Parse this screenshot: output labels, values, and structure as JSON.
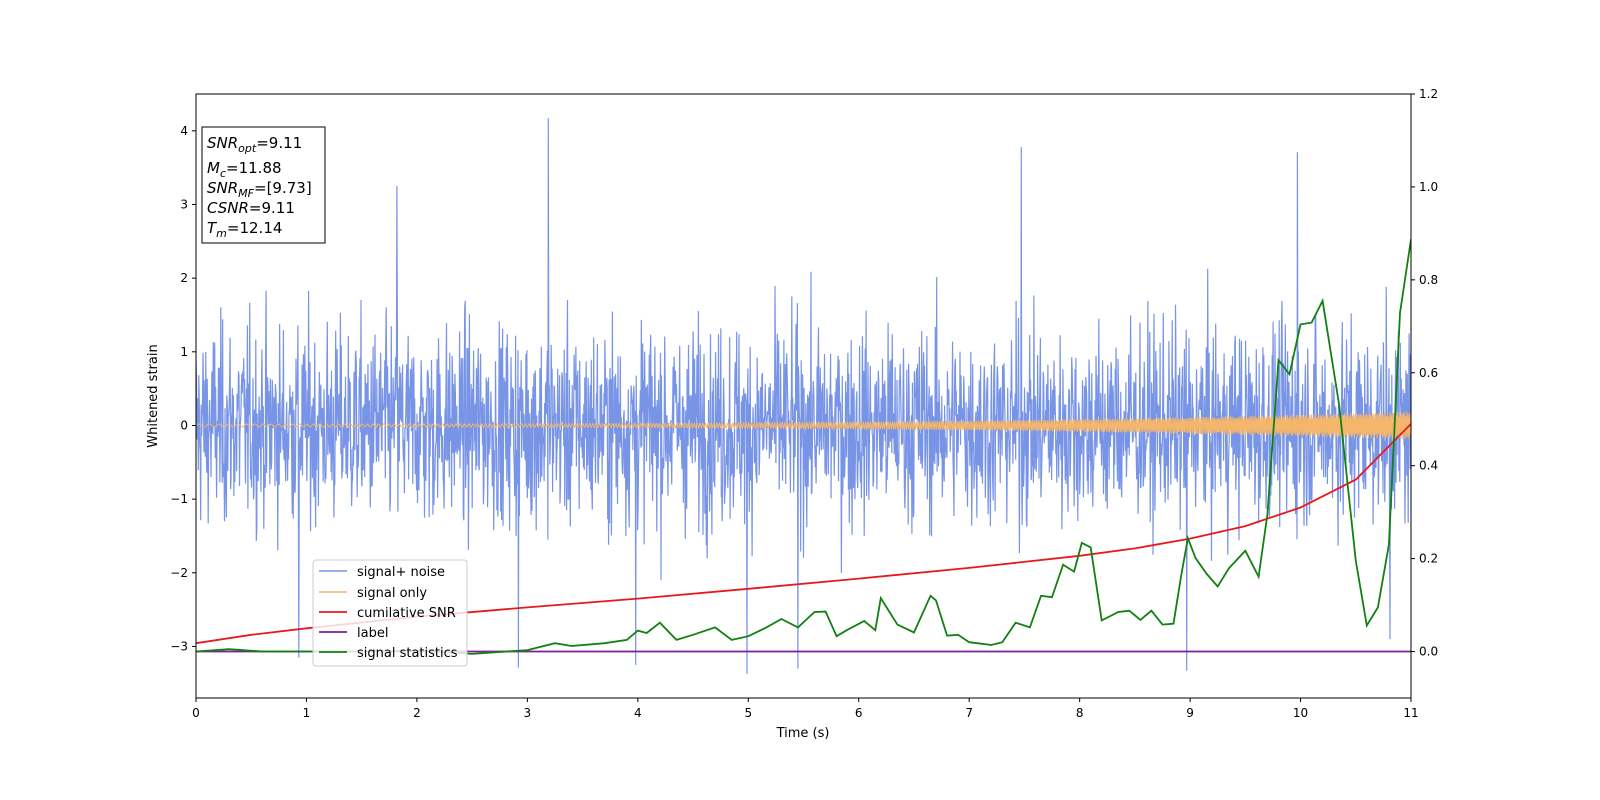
{
  "chart_data": {
    "type": "line",
    "title": "",
    "xlabel": "Time (s)",
    "ylabel": "Whitened strain",
    "xlim": [
      0,
      11
    ],
    "ylim": [
      -3.7,
      4.5
    ],
    "y2lim": [
      -0.1,
      1.2
    ],
    "x_ticks": [
      0,
      1,
      2,
      3,
      4,
      5,
      6,
      7,
      8,
      9,
      10,
      11
    ],
    "y_ticks": [
      -3,
      -2,
      -1,
      0,
      1,
      2,
      3,
      4
    ],
    "y_tick_labels": [
      "−3",
      "−2",
      "−1",
      "0",
      "1",
      "2",
      "3",
      "4"
    ],
    "y2_ticks": [
      0.0,
      0.2,
      0.4,
      0.6,
      0.8,
      1.0,
      1.2
    ],
    "y2_tick_labels": [
      "0.0",
      "0.2",
      "0.4",
      "0.6",
      "0.8",
      "1.0",
      "1.2"
    ],
    "legend_position": "lower-left",
    "info_box": {
      "snr_opt_label": "SNR",
      "snr_opt_sub": "opt",
      "snr_opt_value": "=9.11",
      "mc_label": "M",
      "mc_sub": "c",
      "mc_value": "=11.88",
      "snr_mf_label": "SNR",
      "snr_mf_sub": "MF",
      "snr_mf_value": "=[9.73]",
      "csnr_label": "CSNR",
      "csnr_value": "=9.11",
      "tm_label": "T",
      "tm_sub": "m",
      "tm_value": "=12.14"
    },
    "series": [
      {
        "name": "signal+ noise",
        "axis": "left",
        "color": "#7894e6",
        "description": "dense whitened noise, approximately uniform amplitude",
        "noise_envelope_y": [
          -2.9,
          2.6
        ],
        "peaks": [
          {
            "x": 3.19,
            "y": 4.17
          },
          {
            "x": 7.47,
            "y": 3.78
          },
          {
            "x": 9.97,
            "y": 3.71
          },
          {
            "x": 1.82,
            "y": 3.25
          },
          {
            "x": 4.99,
            "y": -3.37
          },
          {
            "x": 8.97,
            "y": -3.33
          },
          {
            "x": 2.92,
            "y": -3.29
          },
          {
            "x": 5.45,
            "y": -3.3
          },
          {
            "x": 0.93,
            "y": -3.15
          },
          {
            "x": 3.98,
            "y": -3.25
          },
          {
            "x": 10.81,
            "y": -2.9
          }
        ]
      },
      {
        "name": "signal only",
        "axis": "left",
        "color": "#f5b66b",
        "description": "chirp oscillating about 0 with amplitude growing from ~0.02 to ~0.2"
      },
      {
        "name": "cumilative SNR",
        "axis": "right",
        "color": "#e8191c",
        "x": [
          0,
          0.5,
          1,
          2,
          3,
          4,
          5,
          6,
          7,
          8,
          8.5,
          9,
          9.5,
          10,
          10.5,
          11
        ],
        "y": [
          0.018,
          0.036,
          0.05,
          0.075,
          0.095,
          0.114,
          0.135,
          0.157,
          0.18,
          0.206,
          0.222,
          0.243,
          0.27,
          0.31,
          0.37,
          0.49
        ]
      },
      {
        "name": "label",
        "axis": "right",
        "color": "#7e1e9c",
        "x": [
          0,
          11
        ],
        "y": [
          0.0,
          0.0
        ]
      },
      {
        "name": "signal statistics",
        "axis": "right",
        "color": "#128012",
        "x": [
          0.0,
          0.3,
          0.6,
          1.0,
          1.5,
          2.0,
          2.5,
          3.0,
          3.25,
          3.4,
          3.7,
          3.9,
          4.0,
          4.08,
          4.2,
          4.35,
          4.5,
          4.7,
          4.85,
          5.0,
          5.15,
          5.3,
          5.45,
          5.6,
          5.7,
          5.8,
          5.9,
          6.05,
          6.15,
          6.2,
          6.35,
          6.5,
          6.65,
          6.7,
          6.8,
          6.9,
          7.0,
          7.2,
          7.3,
          7.42,
          7.55,
          7.65,
          7.75,
          7.85,
          7.95,
          8.02,
          8.1,
          8.2,
          8.35,
          8.45,
          8.55,
          8.65,
          8.75,
          8.85,
          8.92,
          8.98,
          9.05,
          9.15,
          9.25,
          9.35,
          9.5,
          9.62,
          9.7,
          9.8,
          9.9,
          10.0,
          10.1,
          10.2,
          10.35,
          10.5,
          10.6,
          10.7,
          10.8,
          10.9,
          11.0
        ],
        "y": [
          0.0,
          0.005,
          0.0,
          0.0,
          0.0,
          0.002,
          -0.005,
          0.003,
          0.018,
          0.012,
          0.018,
          0.025,
          0.045,
          0.04,
          0.062,
          0.025,
          0.036,
          0.052,
          0.025,
          0.033,
          0.05,
          0.07,
          0.052,
          0.085,
          0.086,
          0.033,
          0.047,
          0.066,
          0.046,
          0.115,
          0.058,
          0.041,
          0.12,
          0.11,
          0.034,
          0.036,
          0.02,
          0.014,
          0.02,
          0.062,
          0.052,
          0.12,
          0.117,
          0.187,
          0.172,
          0.234,
          0.224,
          0.067,
          0.085,
          0.088,
          0.068,
          0.088,
          0.058,
          0.06,
          0.165,
          0.244,
          0.201,
          0.167,
          0.14,
          0.179,
          0.217,
          0.161,
          0.295,
          0.627,
          0.597,
          0.704,
          0.708,
          0.755,
          0.53,
          0.195,
          0.056,
          0.095,
          0.23,
          0.729,
          0.887
        ]
      }
    ]
  }
}
